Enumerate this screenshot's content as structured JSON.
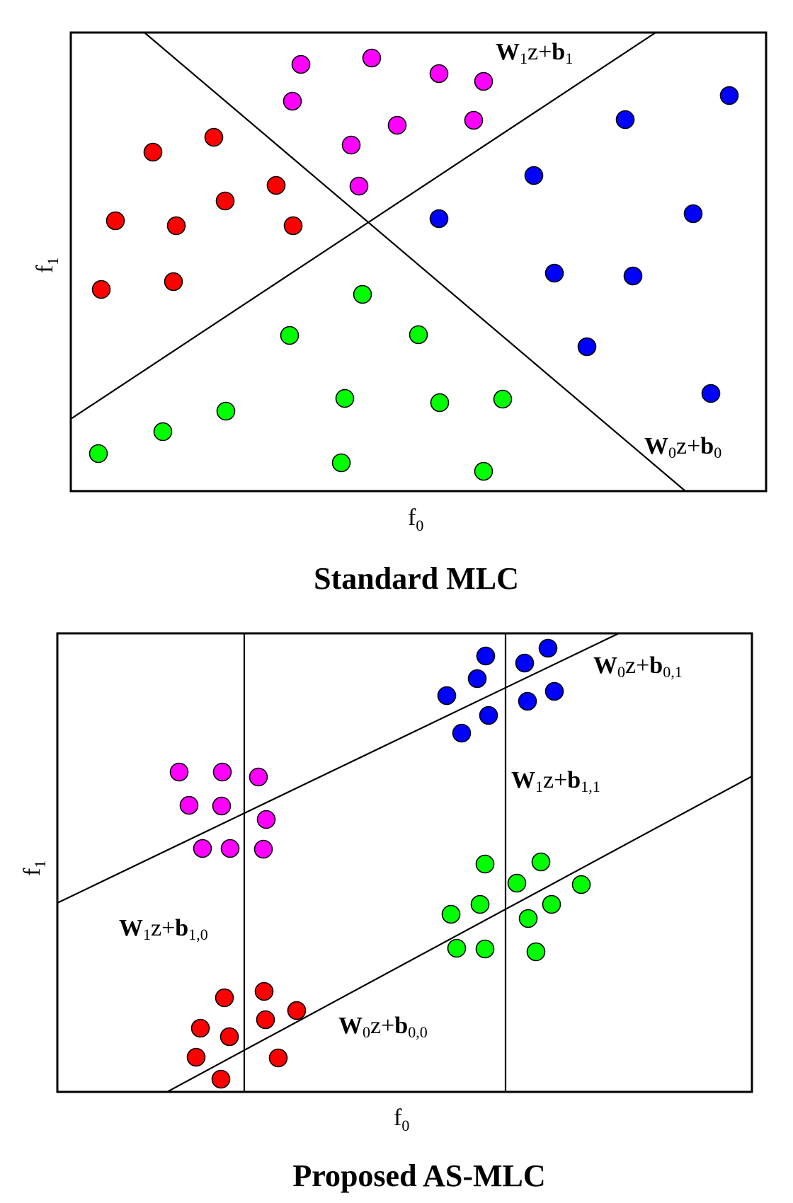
{
  "panels": [
    {
      "id": "standard",
      "title": "Standard MLC",
      "xlabel": {
        "base": "f",
        "sub": "0"
      },
      "ylabel": {
        "base": "f",
        "sub": "1"
      },
      "boundaries": [
        {
          "label": {
            "W": "W",
            "wsub": "1",
            "mid": "z+",
            "b": "b",
            "bsub": "1"
          }
        },
        {
          "label": {
            "W": "W",
            "wsub": "0",
            "mid": "z+",
            "b": "b",
            "bsub": "0"
          }
        }
      ],
      "classes": [
        {
          "name": "red",
          "color": "#ff0000"
        },
        {
          "name": "magenta",
          "color": "#ff00ff"
        },
        {
          "name": "blue",
          "color": "#0000ff"
        },
        {
          "name": "green",
          "color": "#00ff00"
        }
      ]
    },
    {
      "id": "proposed",
      "title": "Proposed AS-MLC",
      "xlabel": {
        "base": "f",
        "sub": "0"
      },
      "ylabel": {
        "base": "f",
        "sub": "1"
      },
      "boundaries": [
        {
          "label": {
            "W": "W",
            "wsub": "0",
            "mid": "z+",
            "b": "b",
            "bsub": "0,1"
          }
        },
        {
          "label": {
            "W": "W",
            "wsub": "1",
            "mid": "z+",
            "b": "b",
            "bsub": "1,1"
          }
        },
        {
          "label": {
            "W": "W",
            "wsub": "1",
            "mid": "z+",
            "b": "b",
            "bsub": "1,0"
          }
        },
        {
          "label": {
            "W": "W",
            "wsub": "0",
            "mid": "z+",
            "b": "b",
            "bsub": "0,0"
          }
        }
      ],
      "classes": [
        {
          "name": "red",
          "color": "#ff0000"
        },
        {
          "name": "magenta",
          "color": "#ff00ff"
        },
        {
          "name": "blue",
          "color": "#0000ff"
        },
        {
          "name": "green",
          "color": "#00ff00"
        }
      ]
    }
  ]
}
